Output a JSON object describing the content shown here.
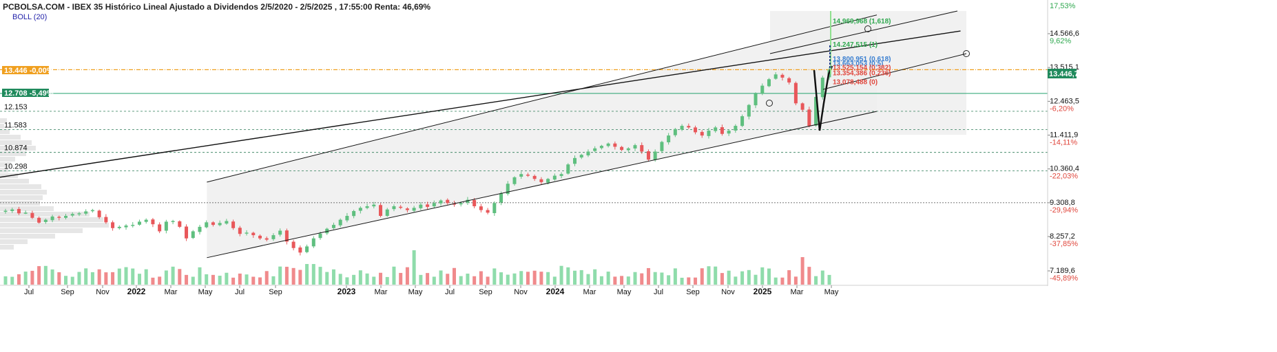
{
  "header": {
    "title": "PCBOLSA.COM - IBEX 35 Histórico Lineal Ajustado a Dividendos 2/5/2020 - 2/5/2025 , 17:55:00 Renta: 46,69%",
    "indicator": "BOLL (20)"
  },
  "colors": {
    "up": "#5fbf7f",
    "down": "#e8575a",
    "vol_up": "#8fdcab",
    "vol_down": "#f08a8c",
    "orange": "#f0a020",
    "green_line": "#22a06b",
    "channel_fill": "#ececec"
  },
  "badges": {
    "orange": {
      "text": "13.446 -0,00%"
    },
    "green": {
      "text": "12.708 -5,49%"
    },
    "last": {
      "text": "13.446,7"
    }
  },
  "left_levels": [
    "12.153",
    "11.583",
    "10.874",
    "10.298"
  ],
  "y_axis": {
    "ticks": [
      {
        "label": "14.566,6",
        "pct": "9,62%",
        "sign": "pos"
      },
      {
        "label": "13.515,1",
        "pct": "",
        "sign": "pos"
      },
      {
        "label": "12.463,5",
        "pct": "-6,20%",
        "sign": "neg"
      },
      {
        "label": "11.411,9",
        "pct": "-14,11%",
        "sign": "neg"
      },
      {
        "label": "10.360,4",
        "pct": "-22,03%",
        "sign": "neg"
      },
      {
        "label": "9.308,8",
        "pct": "-29,94%",
        "sign": "neg"
      },
      {
        "label": "8.257,2",
        "pct": "-37,85%",
        "sign": "neg"
      },
      {
        "label": "7.189,6",
        "pct": "-45,89%",
        "sign": "neg"
      }
    ],
    "top_pct": "17,53%"
  },
  "fib_labels": [
    {
      "text": "14.969,968 (1,618)",
      "color": "#2fa84f"
    },
    {
      "text": "14.247,515 (1)",
      "color": "#2fa84f"
    },
    {
      "text": "13.800,951 (0,618)",
      "color": "#3a7fd0"
    },
    {
      "text": "13.663,053 (0,5)",
      "color": "#3a7fd0"
    },
    {
      "text": "13.525,154 (0,382)",
      "color": "#e0463c"
    },
    {
      "text": "13.354,386 (0,236)",
      "color": "#e0463c"
    },
    {
      "text": "13.078,488 (0)",
      "color": "#e0463c"
    }
  ],
  "x_axis": {
    "labels": [
      {
        "text": "Jul",
        "kind": "month"
      },
      {
        "text": "Sep",
        "kind": "month"
      },
      {
        "text": "Nov",
        "kind": "month"
      },
      {
        "text": "2022",
        "kind": "year"
      },
      {
        "text": "Mar",
        "kind": "month"
      },
      {
        "text": "May",
        "kind": "month"
      },
      {
        "text": "Jul",
        "kind": "month"
      },
      {
        "text": "Sep",
        "kind": "month"
      },
      {
        "text": "2023",
        "kind": "year"
      },
      {
        "text": "Mar",
        "kind": "month"
      },
      {
        "text": "May",
        "kind": "month"
      },
      {
        "text": "Jul",
        "kind": "month"
      },
      {
        "text": "Sep",
        "kind": "month"
      },
      {
        "text": "Nov",
        "kind": "month"
      },
      {
        "text": "2024",
        "kind": "year"
      },
      {
        "text": "Mar",
        "kind": "month"
      },
      {
        "text": "May",
        "kind": "month"
      },
      {
        "text": "Jul",
        "kind": "month"
      },
      {
        "text": "Sep",
        "kind": "month"
      },
      {
        "text": "Nov",
        "kind": "month"
      },
      {
        "text": "2025",
        "kind": "year"
      },
      {
        "text": "Mar",
        "kind": "month"
      },
      {
        "text": "May",
        "kind": "month"
      }
    ]
  },
  "chart_data": {
    "type": "candlestick",
    "title": "PCBOLSA.COM - IBEX 35 Histórico Lineal Ajustado a Dividendos 2/5/2020 - 2/5/2025 , 17:55:00 Renta: 46,69%",
    "y_unit": "index points",
    "ylim": [
      7189.6,
      15200
    ],
    "last_value": 13446.7,
    "x_range": [
      "2021-06",
      "2025-05"
    ],
    "horizontal_lines": [
      13446,
      12708,
      12153,
      11583,
      10874,
      10298,
      9308.8
    ],
    "weekly_close_approx": [
      9060,
      9100,
      8980,
      9000,
      8840,
      8690,
      8780,
      8880,
      8850,
      8900,
      8960,
      8980,
      9040,
      9080,
      8860,
      8700,
      8520,
      8560,
      8600,
      8620,
      8720,
      8780,
      8640,
      8420,
      8720,
      8740,
      8560,
      8200,
      8420,
      8560,
      8700,
      8620,
      8680,
      8740,
      8520,
      8340,
      8380,
      8300,
      8200,
      8160,
      8300,
      8440,
      8100,
      7900,
      7760,
      7950,
      8200,
      8350,
      8500,
      8620,
      8780,
      8900,
      9050,
      9150,
      9200,
      9250,
      8900,
      9100,
      9200,
      9150,
      9080,
      9150,
      9250,
      9180,
      9300,
      9380,
      9300,
      9250,
      9300,
      9400,
      9200,
      9080,
      9000,
      9300,
      9600,
      9900,
      10100,
      10200,
      10150,
      10050,
      9950,
      10050,
      10150,
      10200,
      10500,
      10700,
      10800,
      10900,
      11000,
      11080,
      11150,
      11050,
      10950,
      11000,
      11100,
      10900,
      10650,
      10900,
      11200,
      11400,
      11600,
      11700,
      11650,
      11500,
      11400,
      11550,
      11650,
      11450,
      11550,
      11700,
      12000,
      12350,
      12700,
      12950,
      13150,
      13300,
      13200,
      13050,
      12400,
      12200,
      11700,
      12600,
      13200,
      13446
    ],
    "channels": [
      {
        "name": "upper-channel",
        "from": [
          2022.35,
          9950
        ],
        "to": [
          2025.55,
          15150
        ]
      },
      {
        "name": "lower-channel",
        "from": [
          2022.35,
          7600
        ],
        "to": [
          2025.55,
          12150
        ]
      },
      {
        "name": "long-trendline",
        "from": [
          2020.35,
          9100
        ],
        "to": [
          2025.95,
          14650
        ]
      }
    ],
    "fib_levels": [
      {
        "ratio": "1,618",
        "value": 14969.968
      },
      {
        "ratio": "1",
        "value": 14247.515
      },
      {
        "ratio": "0,618",
        "value": 13800.951
      },
      {
        "ratio": "0,5",
        "value": 13663.053
      },
      {
        "ratio": "0,382",
        "value": 13525.154
      },
      {
        "ratio": "0,236",
        "value": 13354.386
      },
      {
        "ratio": "0",
        "value": 13078.488
      }
    ]
  }
}
